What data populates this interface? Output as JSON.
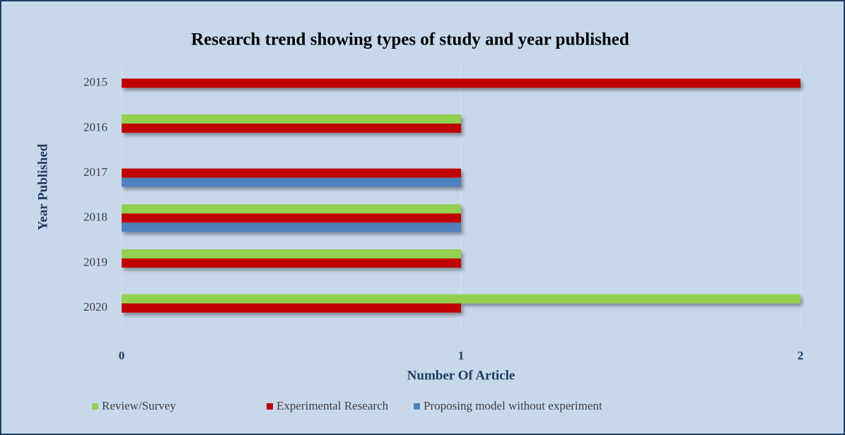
{
  "chart_data": {
    "type": "barh",
    "title": "Research trend showing types of study and year published",
    "xlabel": "Number Of Article",
    "ylabel": "Year Published",
    "categories": [
      "2015",
      "2016",
      "2017",
      "2018",
      "2019",
      "2020"
    ],
    "series": [
      {
        "name": "Review/Survey",
        "color": "#92d050",
        "values": [
          0,
          1,
          0,
          1,
          1,
          2
        ]
      },
      {
        "name": "Experimental Research",
        "color": "#c00000",
        "values": [
          2,
          1,
          1,
          1,
          1,
          1
        ]
      },
      {
        "name": "Proposing model without experiment",
        "color": "#4f81bd",
        "values": [
          0,
          0,
          1,
          1,
          0,
          0
        ]
      }
    ],
    "xlim": [
      0,
      2
    ],
    "xticks": [
      0,
      1,
      2
    ],
    "legend": "bottom"
  }
}
